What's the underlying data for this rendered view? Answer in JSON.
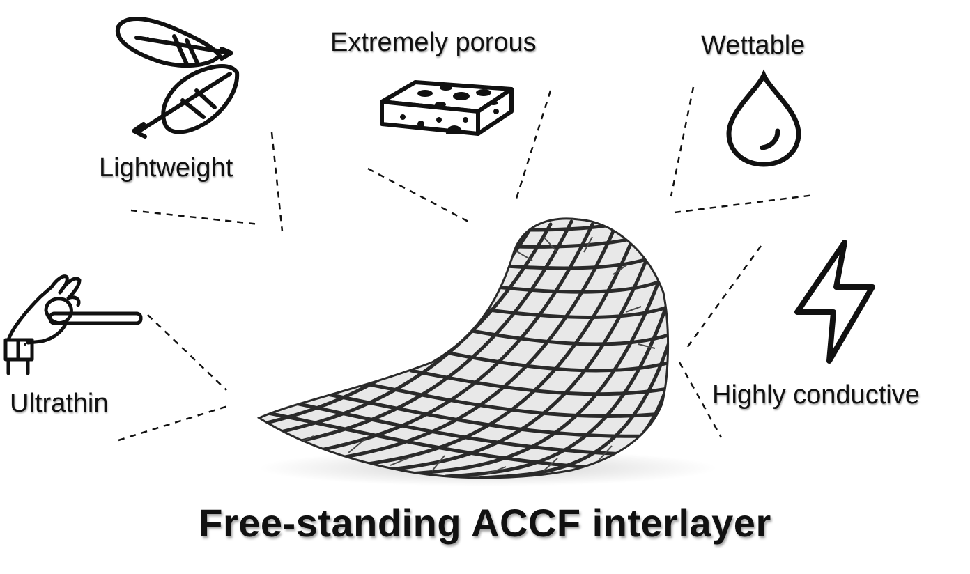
{
  "labels": {
    "lightweight": "Lightweight",
    "porous": "Extremely porous",
    "wettable": "Wettable",
    "ultrathin": "Ultrathin",
    "conductive": "Highly conductive"
  },
  "title": "Free-standing ACCF interlayer",
  "icons": {
    "lightweight": "feather-icon",
    "porous": "sponge-icon",
    "wettable": "water-drop-icon",
    "ultrathin": "hand-holding-rod-icon",
    "conductive": "lightning-bolt-icon"
  },
  "colors": {
    "ink": "#111111",
    "mesh": "#2a2a2a",
    "background": "#ffffff"
  }
}
